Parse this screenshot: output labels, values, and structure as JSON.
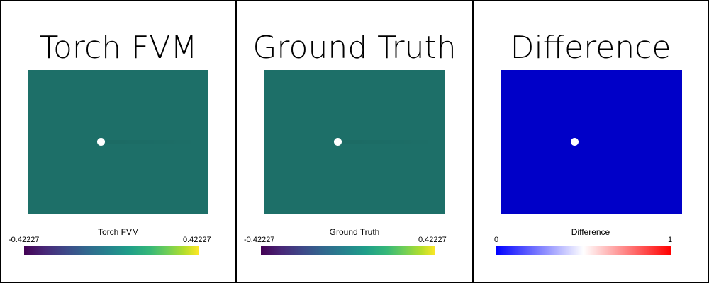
{
  "panels": [
    {
      "title": "Torch FVM",
      "field_color": "#1d6f68",
      "colorbar": {
        "title": "Torch FVM",
        "min": "-0.42227",
        "max": "0.42227",
        "colormap": "viridis"
      }
    },
    {
      "title": "Ground Truth",
      "field_color": "#1d6f68",
      "colorbar": {
        "title": "Ground Truth",
        "min": "-0.42227",
        "max": "0.42227",
        "colormap": "viridis"
      }
    },
    {
      "title": "Difference",
      "field_color": "#0000c8",
      "colorbar": {
        "title": "Difference",
        "min": "0",
        "max": "1",
        "colormap": "blue-white-red"
      }
    }
  ],
  "colors": {
    "border": "#000000",
    "background": "#ffffff",
    "obstacle": "#ffffff"
  },
  "icons": {
    "obstacle": "circle-obstacle"
  }
}
